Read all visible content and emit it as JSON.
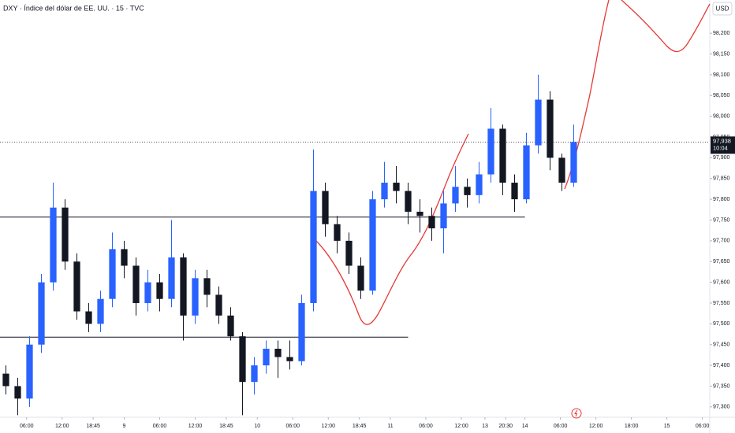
{
  "chart_data": {
    "type": "candlestick",
    "title": "DXY · Índice del dólar de EE. UU. · 15 · TVC",
    "currency": "USD",
    "up_color": "#2962ff",
    "down_color": "#131722",
    "xlim": [
      0,
      480
    ],
    "ylim": [
      97.275,
      98.28
    ],
    "grid": false,
    "x": [
      0,
      8,
      16,
      24,
      32,
      40,
      48,
      56,
      64,
      72,
      80,
      88,
      96,
      104,
      112,
      120,
      128,
      136,
      144,
      152,
      160,
      168,
      176,
      184,
      192,
      200,
      208,
      216,
      224,
      232,
      240,
      248,
      256,
      264,
      272,
      280,
      288,
      296,
      304,
      312,
      320,
      328,
      336,
      344,
      352,
      360,
      368,
      376,
      384
    ],
    "open": [
      97.38,
      97.35,
      97.32,
      97.45,
      97.6,
      97.78,
      97.65,
      97.53,
      97.5,
      97.56,
      97.68,
      97.64,
      97.55,
      97.6,
      97.56,
      97.66,
      97.52,
      97.61,
      97.57,
      97.52,
      97.47,
      97.36,
      97.4,
      97.44,
      97.42,
      97.41,
      97.55,
      97.82,
      97.74,
      97.7,
      97.64,
      97.58,
      97.8,
      97.84,
      97.82,
      97.77,
      97.76,
      97.73,
      97.79,
      97.83,
      97.81,
      97.86,
      97.97,
      97.84,
      97.8,
      97.93,
      98.04,
      97.9,
      97.84
    ],
    "high": [
      97.4,
      97.37,
      97.47,
      97.62,
      97.84,
      97.8,
      97.67,
      97.55,
      97.58,
      97.72,
      97.7,
      97.66,
      97.63,
      97.62,
      97.75,
      97.67,
      97.63,
      97.63,
      97.59,
      97.54,
      97.48,
      97.42,
      97.46,
      97.46,
      97.46,
      97.57,
      97.92,
      97.84,
      97.76,
      97.72,
      97.66,
      97.82,
      97.89,
      97.88,
      97.84,
      97.8,
      97.78,
      97.82,
      97.88,
      97.85,
      97.89,
      98.02,
      97.98,
      97.86,
      97.96,
      98.1,
      98.06,
      97.91,
      97.98
    ],
    "low": [
      97.33,
      97.28,
      97.3,
      97.43,
      97.58,
      97.63,
      97.51,
      97.48,
      97.48,
      97.54,
      97.61,
      97.52,
      97.53,
      97.53,
      97.54,
      97.46,
      97.5,
      97.54,
      97.5,
      97.46,
      97.28,
      97.33,
      97.38,
      97.37,
      97.39,
      97.4,
      97.53,
      97.71,
      97.67,
      97.62,
      97.56,
      97.57,
      97.78,
      97.79,
      97.74,
      97.72,
      97.7,
      97.67,
      97.77,
      97.78,
      97.79,
      97.84,
      97.81,
      97.77,
      97.79,
      97.91,
      97.87,
      97.82,
      97.83
    ],
    "close": [
      97.35,
      97.32,
      97.45,
      97.6,
      97.78,
      97.65,
      97.53,
      97.5,
      97.56,
      97.68,
      97.64,
      97.55,
      97.6,
      97.56,
      97.66,
      97.52,
      97.61,
      97.57,
      97.52,
      97.47,
      97.36,
      97.4,
      97.44,
      97.42,
      97.41,
      97.55,
      97.82,
      97.74,
      97.7,
      97.64,
      97.58,
      97.8,
      97.84,
      97.82,
      97.77,
      97.76,
      97.73,
      97.79,
      97.83,
      97.81,
      97.86,
      97.97,
      97.84,
      97.8,
      97.93,
      98.04,
      97.9,
      97.84,
      97.938
    ],
    "last_price": {
      "value": 97.938,
      "label": "97,938"
    },
    "countdown": "10:04",
    "levels": [
      {
        "value": 97.757,
        "x_end": 355
      },
      {
        "value": 97.468,
        "x_end": 276
      }
    ],
    "yticks": [
      {
        "value": 97.3,
        "label": "97,300"
      },
      {
        "value": 97.35,
        "label": "97,350"
      },
      {
        "value": 97.4,
        "label": "97,400"
      },
      {
        "value": 97.45,
        "label": "97,450"
      },
      {
        "value": 97.5,
        "label": "97,500"
      },
      {
        "value": 97.55,
        "label": "97,550"
      },
      {
        "value": 97.6,
        "label": "97,600"
      },
      {
        "value": 97.65,
        "label": "97,650"
      },
      {
        "value": 97.7,
        "label": "97,700"
      },
      {
        "value": 97.75,
        "label": "97,750"
      },
      {
        "value": 97.8,
        "label": "97,800"
      },
      {
        "value": 97.85,
        "label": "97,850"
      },
      {
        "value": 97.9,
        "label": "97,900"
      },
      {
        "value": 97.95,
        "label": "97,950"
      },
      {
        "value": 98.0,
        "label": "98,000"
      },
      {
        "value": 98.05,
        "label": "98,050"
      },
      {
        "value": 98.1,
        "label": "98,100"
      },
      {
        "value": 98.15,
        "label": "98,150"
      },
      {
        "value": 98.2,
        "label": "98,200"
      }
    ],
    "xticks": [
      {
        "value": 18,
        "label": "06:00"
      },
      {
        "value": 42,
        "label": "12:00"
      },
      {
        "value": 63,
        "label": "18:45"
      },
      {
        "value": 84,
        "label": "9"
      },
      {
        "value": 108,
        "label": "06:00"
      },
      {
        "value": 132,
        "label": "12:00"
      },
      {
        "value": 153,
        "label": "18:45"
      },
      {
        "value": 174,
        "label": "10"
      },
      {
        "value": 198,
        "label": "06:00"
      },
      {
        "value": 222,
        "label": "12:00"
      },
      {
        "value": 243,
        "label": "18:45"
      },
      {
        "value": 264,
        "label": "11"
      },
      {
        "value": 288,
        "label": "06:00"
      },
      {
        "value": 312,
        "label": "12:00"
      },
      {
        "value": 328,
        "label": "13"
      },
      {
        "value": 342,
        "label": "20:30"
      },
      {
        "value": 355,
        "label": "14"
      },
      {
        "value": 379,
        "label": "06:00"
      },
      {
        "value": 403,
        "label": "12:00"
      },
      {
        "value": 427,
        "label": "18:00"
      },
      {
        "value": 451,
        "label": "15"
      },
      {
        "value": 475,
        "label": "06:00"
      }
    ]
  }
}
